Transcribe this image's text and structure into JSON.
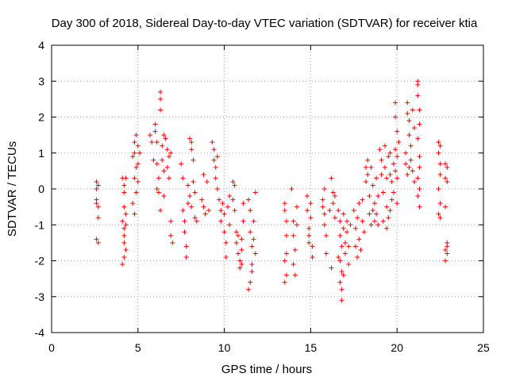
{
  "chart_data": {
    "type": "scatter",
    "title": "Day 300 of 2018, Sidereal Day-to-day VTEC variation (SDTVAR) for receiver ktia",
    "xlabel": "GPS time / hours",
    "ylabel": "SDTVAR / TECUs",
    "xlim": [
      0,
      25
    ],
    "ylim": [
      -4,
      4
    ],
    "x_ticks": [
      0,
      5,
      10,
      15,
      20,
      25
    ],
    "y_ticks": [
      -4,
      -3,
      -2,
      -1,
      0,
      1,
      2,
      3,
      4
    ],
    "x_tick_labels": [
      "0",
      "5",
      "10",
      "15",
      "20",
      "25"
    ],
    "y_tick_labels": [
      "-4",
      "-3",
      "-2",
      "-1",
      "0",
      "1",
      "2",
      "3",
      "4"
    ],
    "grid": true,
    "marker": "+",
    "color": "#ff0000",
    "series": [
      {
        "name": "ktia",
        "points": [
          [
            2.6,
            0.2
          ],
          [
            2.6,
            0.0
          ],
          [
            2.6,
            -0.3
          ],
          [
            2.7,
            -0.5
          ],
          [
            2.7,
            -0.8
          ],
          [
            2.6,
            -0.4
          ],
          [
            2.7,
            0.1
          ],
          [
            2.6,
            -1.4
          ],
          [
            2.7,
            -1.5
          ],
          [
            4.1,
            0.3
          ],
          [
            4.2,
            0.1
          ],
          [
            4.2,
            -0.1
          ],
          [
            4.3,
            0.3
          ],
          [
            4.1,
            -0.9
          ],
          [
            4.2,
            -1.1
          ],
          [
            4.2,
            -1.3
          ],
          [
            4.3,
            -1.0
          ],
          [
            4.2,
            -1.5
          ],
          [
            4.3,
            -1.7
          ],
          [
            4.2,
            -1.9
          ],
          [
            4.1,
            -2.1
          ],
          [
            4.3,
            -0.7
          ],
          [
            4.2,
            -0.5
          ],
          [
            4.7,
            0.9
          ],
          [
            4.8,
            1.3
          ],
          [
            4.9,
            1.5
          ],
          [
            4.8,
            1.0
          ],
          [
            4.9,
            0.6
          ],
          [
            4.8,
            0.3
          ],
          [
            5.0,
            1.2
          ],
          [
            5.0,
            0.7
          ],
          [
            4.7,
            -0.4
          ],
          [
            4.8,
            -0.7
          ],
          [
            4.9,
            -0.1
          ],
          [
            5.1,
            1.0
          ],
          [
            5.0,
            0.2
          ],
          [
            5.7,
            1.5
          ],
          [
            5.8,
            1.3
          ],
          [
            5.9,
            0.8
          ],
          [
            6.0,
            1.6
          ],
          [
            6.0,
            1.8
          ],
          [
            6.1,
            1.3
          ],
          [
            6.1,
            0.7
          ],
          [
            6.2,
            0.3
          ],
          [
            6.1,
            0.0
          ],
          [
            6.2,
            -0.1
          ],
          [
            6.3,
            2.5
          ],
          [
            6.3,
            2.7
          ],
          [
            6.3,
            2.2
          ],
          [
            6.4,
            1.2
          ],
          [
            6.4,
            0.8
          ],
          [
            6.5,
            1.5
          ],
          [
            6.5,
            0.5
          ],
          [
            6.6,
            1.4
          ],
          [
            6.7,
            1.1
          ],
          [
            6.8,
            0.9
          ],
          [
            6.8,
            0.3
          ],
          [
            6.9,
            -0.9
          ],
          [
            6.9,
            -1.3
          ],
          [
            7.0,
            -1.5
          ],
          [
            6.3,
            -0.6
          ],
          [
            6.5,
            -0.2
          ],
          [
            6.7,
            0.6
          ],
          [
            6.9,
            1.0
          ],
          [
            7.5,
            0.7
          ],
          [
            7.6,
            0.3
          ],
          [
            7.6,
            -0.6
          ],
          [
            7.7,
            -0.9
          ],
          [
            7.7,
            -1.2
          ],
          [
            7.8,
            -1.6
          ],
          [
            7.8,
            -1.9
          ],
          [
            7.9,
            -0.4
          ],
          [
            8.0,
            -0.2
          ],
          [
            8.0,
            1.4
          ],
          [
            8.1,
            1.3
          ],
          [
            8.1,
            1.1
          ],
          [
            8.2,
            0.8
          ],
          [
            8.2,
            0.2
          ],
          [
            8.3,
            -0.1
          ],
          [
            8.3,
            -0.8
          ],
          [
            8.4,
            -0.9
          ],
          [
            7.9,
            0.1
          ],
          [
            8.1,
            -0.5
          ],
          [
            8.7,
            -0.3
          ],
          [
            8.8,
            0.4
          ],
          [
            8.8,
            -0.5
          ],
          [
            8.9,
            -0.7
          ],
          [
            9.0,
            0.2
          ],
          [
            9.1,
            -0.6
          ],
          [
            9.3,
            1.3
          ],
          [
            9.4,
            1.1
          ],
          [
            9.4,
            0.8
          ],
          [
            9.5,
            0.6
          ],
          [
            9.5,
            0.3
          ],
          [
            9.6,
            0.9
          ],
          [
            9.6,
            0.0
          ],
          [
            9.7,
            -0.3
          ],
          [
            9.8,
            -0.6
          ],
          [
            9.8,
            -0.9
          ],
          [
            9.9,
            -0.4
          ],
          [
            10.0,
            -0.7
          ],
          [
            10.0,
            -1.2
          ],
          [
            10.1,
            -1.5
          ],
          [
            10.1,
            -1.9
          ],
          [
            10.2,
            -0.5
          ],
          [
            10.3,
            -0.2
          ],
          [
            10.3,
            -1.0
          ],
          [
            10.5,
            0.2
          ],
          [
            10.5,
            -0.3
          ],
          [
            10.6,
            0.1
          ],
          [
            10.6,
            -0.6
          ],
          [
            10.7,
            -1.2
          ],
          [
            10.7,
            -1.5
          ],
          [
            10.8,
            -1.8
          ],
          [
            10.8,
            -1.3
          ],
          [
            10.9,
            -2.0
          ],
          [
            10.9,
            -2.2
          ],
          [
            11.0,
            -1.7
          ],
          [
            11.0,
            -1.4
          ],
          [
            11.1,
            -0.9
          ],
          [
            11.1,
            -0.4
          ],
          [
            11.0,
            -2.1
          ],
          [
            11.4,
            -0.3
          ],
          [
            11.5,
            -0.6
          ],
          [
            11.5,
            -1.2
          ],
          [
            11.6,
            -1.6
          ],
          [
            11.6,
            -2.1
          ],
          [
            11.5,
            -2.6
          ],
          [
            11.4,
            -2.8
          ],
          [
            11.6,
            -2.3
          ],
          [
            11.7,
            -1.4
          ],
          [
            11.7,
            -0.9
          ],
          [
            11.8,
            -0.1
          ],
          [
            11.8,
            -1.8
          ],
          [
            13.5,
            -0.4
          ],
          [
            13.5,
            -0.6
          ],
          [
            13.6,
            -1.3
          ],
          [
            13.5,
            -2.0
          ],
          [
            13.6,
            -2.4
          ],
          [
            13.5,
            -2.6
          ],
          [
            13.6,
            -1.8
          ],
          [
            13.6,
            -0.9
          ],
          [
            13.9,
            0.0
          ],
          [
            14.0,
            -0.9
          ],
          [
            14.0,
            -1.3
          ],
          [
            14.1,
            -1.7
          ],
          [
            14.0,
            -2.1
          ],
          [
            14.1,
            -2.4
          ],
          [
            14.2,
            -0.5
          ],
          [
            14.2,
            -1.0
          ],
          [
            14.8,
            -0.2
          ],
          [
            14.8,
            -0.6
          ],
          [
            14.9,
            -1.1
          ],
          [
            14.9,
            -1.5
          ],
          [
            15.0,
            -0.4
          ],
          [
            15.0,
            -0.8
          ],
          [
            15.1,
            -1.9
          ],
          [
            15.1,
            -1.6
          ],
          [
            14.9,
            -1.3
          ],
          [
            15.7,
            -0.3
          ],
          [
            15.8,
            -0.7
          ],
          [
            15.8,
            -1.0
          ],
          [
            15.9,
            -1.3
          ],
          [
            15.9,
            -1.8
          ],
          [
            15.8,
            0.0
          ],
          [
            15.7,
            -0.5
          ],
          [
            16.1,
            -0.6
          ],
          [
            16.2,
            0.3
          ],
          [
            16.3,
            -0.1
          ],
          [
            16.3,
            -0.4
          ],
          [
            16.4,
            -0.8
          ],
          [
            16.4,
            -0.2
          ],
          [
            16.2,
            -2.2
          ],
          [
            16.6,
            -0.6
          ],
          [
            16.7,
            -0.9
          ],
          [
            16.7,
            -1.3
          ],
          [
            16.8,
            -1.6
          ],
          [
            16.7,
            -2.0
          ],
          [
            16.8,
            -2.3
          ],
          [
            16.7,
            -2.6
          ],
          [
            16.8,
            -2.8
          ],
          [
            16.8,
            -3.1
          ],
          [
            16.9,
            -0.7
          ],
          [
            16.9,
            -1.1
          ],
          [
            17.0,
            -1.5
          ],
          [
            17.0,
            -1.8
          ],
          [
            17.1,
            -1.2
          ],
          [
            17.1,
            -0.9
          ],
          [
            17.2,
            -2.1
          ],
          [
            17.2,
            -1.6
          ],
          [
            17.3,
            -1.0
          ],
          [
            16.6,
            -1.9
          ],
          [
            16.9,
            -2.4
          ],
          [
            17.5,
            -0.6
          ],
          [
            17.6,
            -1.1
          ],
          [
            17.6,
            -1.6
          ],
          [
            17.7,
            -1.9
          ],
          [
            17.7,
            -0.8
          ],
          [
            17.8,
            -0.4
          ],
          [
            17.8,
            -1.4
          ],
          [
            17.9,
            -1.7
          ],
          [
            18.0,
            -0.9
          ],
          [
            18.0,
            -0.3
          ],
          [
            18.1,
            -1.2
          ],
          [
            18.2,
            0.6
          ],
          [
            18.2,
            0.2
          ],
          [
            18.3,
            0.8
          ],
          [
            18.3,
            0.4
          ],
          [
            18.4,
            -0.2
          ],
          [
            18.5,
            0.6
          ],
          [
            18.6,
            0.1
          ],
          [
            18.6,
            -0.6
          ],
          [
            18.7,
            -0.9
          ],
          [
            18.7,
            -0.4
          ],
          [
            18.8,
            0.3
          ],
          [
            18.9,
            -0.2
          ],
          [
            18.9,
            -1.0
          ],
          [
            18.4,
            -0.7
          ],
          [
            18.5,
            -1.0
          ],
          [
            18.8,
            -0.7
          ],
          [
            19.0,
            1.1
          ],
          [
            19.1,
            0.8
          ],
          [
            19.1,
            0.4
          ],
          [
            19.2,
            -0.1
          ],
          [
            19.3,
            0.6
          ],
          [
            19.3,
            1.2
          ],
          [
            19.4,
            0.3
          ],
          [
            19.4,
            -0.5
          ],
          [
            19.5,
            0.9
          ],
          [
            19.5,
            -0.8
          ],
          [
            19.6,
            0.4
          ],
          [
            19.6,
            1.0
          ],
          [
            19.7,
            0.2
          ],
          [
            19.7,
            -0.3
          ],
          [
            19.8,
            0.7
          ],
          [
            19.9,
            1.1
          ],
          [
            19.9,
            0.5
          ],
          [
            20.0,
            0.3
          ],
          [
            19.2,
            -0.9
          ],
          [
            19.4,
            -1.1
          ],
          [
            19.6,
            -0.6
          ],
          [
            19.8,
            -0.1
          ],
          [
            20.0,
            -0.4
          ],
          [
            19.9,
            2.4
          ],
          [
            19.9,
            2.0
          ],
          [
            20.0,
            1.6
          ],
          [
            20.1,
            1.3
          ],
          [
            20.0,
            0.9
          ],
          [
            20.5,
            1.0
          ],
          [
            20.5,
            0.7
          ],
          [
            20.6,
            2.4
          ],
          [
            20.6,
            2.1
          ],
          [
            20.7,
            1.9
          ],
          [
            20.7,
            1.5
          ],
          [
            20.8,
            1.2
          ],
          [
            20.8,
            0.8
          ],
          [
            20.9,
            2.2
          ],
          [
            20.9,
            0.5
          ],
          [
            21.0,
            1.7
          ],
          [
            21.0,
            0.2
          ],
          [
            20.7,
            0.6
          ],
          [
            20.6,
            0.4
          ],
          [
            21.2,
            2.9
          ],
          [
            21.2,
            2.6
          ],
          [
            21.3,
            2.2
          ],
          [
            21.3,
            1.8
          ],
          [
            21.2,
            1.4
          ],
          [
            21.3,
            0.9
          ],
          [
            21.3,
            0.6
          ],
          [
            21.2,
            0.3
          ],
          [
            21.3,
            0.0
          ],
          [
            21.2,
            -0.2
          ],
          [
            21.3,
            -0.5
          ],
          [
            21.2,
            3.0
          ],
          [
            22.4,
            1.3
          ],
          [
            22.4,
            1.0
          ],
          [
            22.5,
            0.7
          ],
          [
            22.5,
            0.4
          ],
          [
            22.4,
            0.0
          ],
          [
            22.5,
            -0.4
          ],
          [
            22.4,
            -0.7
          ],
          [
            22.5,
            -0.8
          ],
          [
            22.5,
            1.2
          ],
          [
            22.8,
            0.7
          ],
          [
            22.9,
            0.6
          ],
          [
            22.8,
            0.3
          ],
          [
            22.9,
            0.2
          ],
          [
            22.8,
            -0.5
          ],
          [
            22.9,
            -1.5
          ],
          [
            22.8,
            -1.7
          ],
          [
            22.9,
            -1.8
          ],
          [
            22.8,
            -2.0
          ],
          [
            22.9,
            -1.6
          ]
        ]
      }
    ]
  }
}
